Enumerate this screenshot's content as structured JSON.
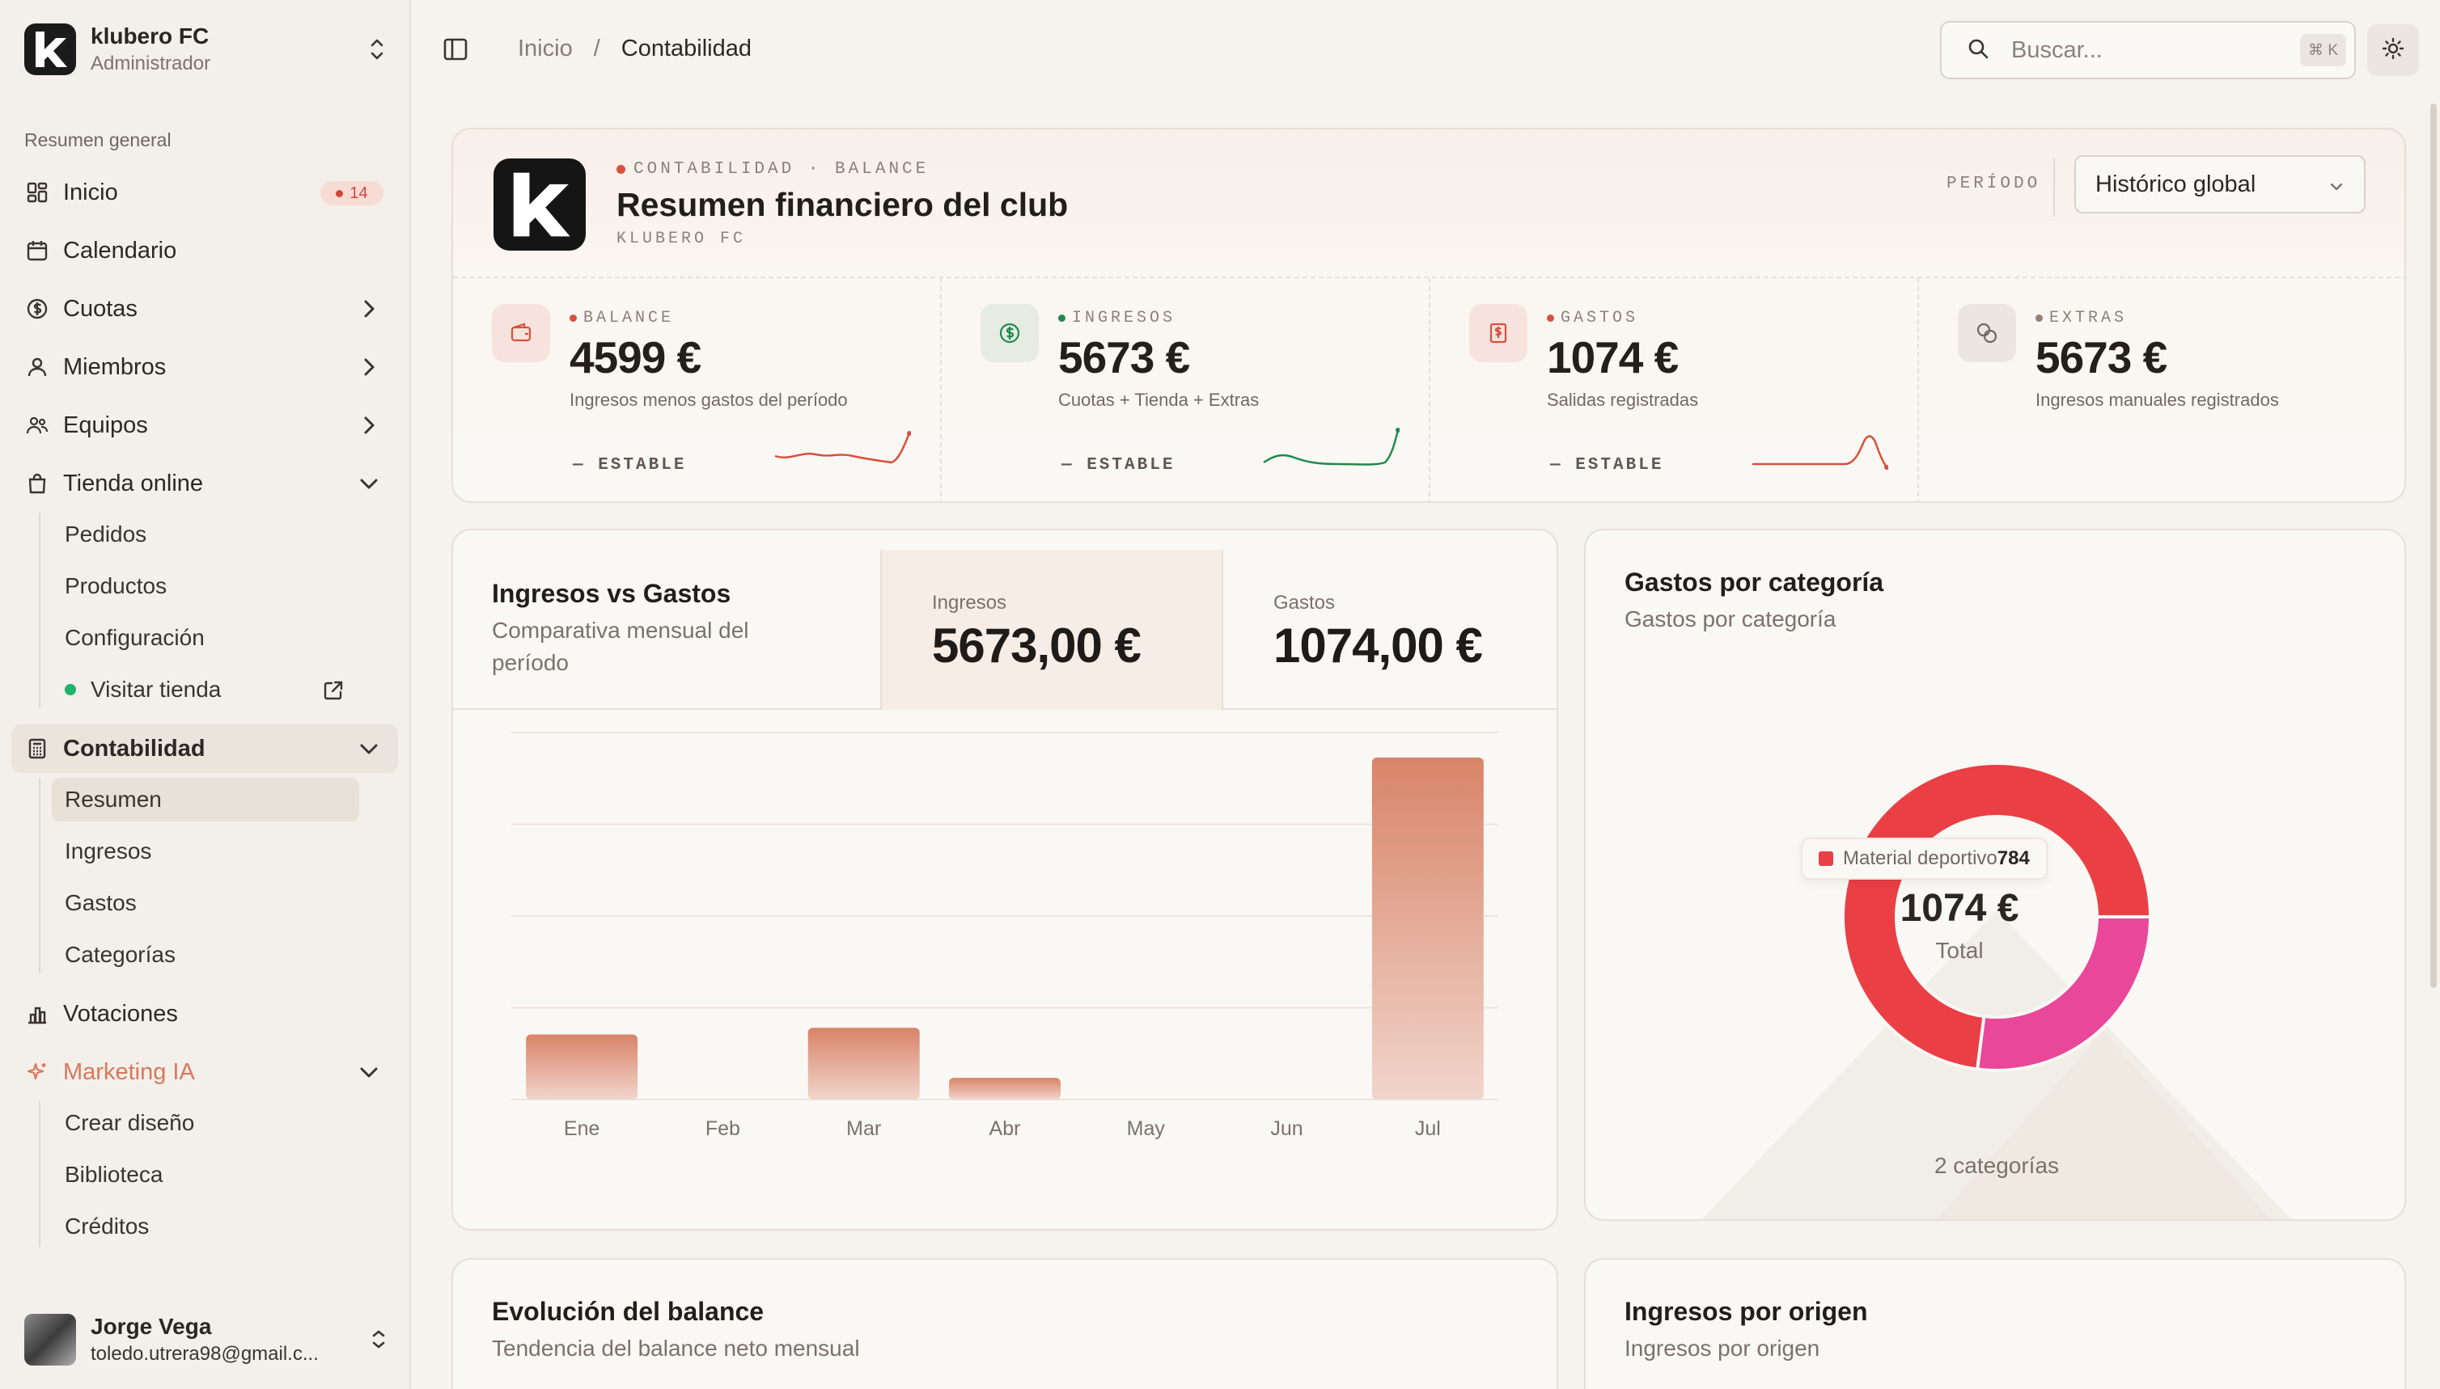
{
  "sidebar": {
    "club_name": "klubero FC",
    "club_role": "Administrador",
    "section_title": "Resumen general",
    "items": {
      "inicio": "Inicio",
      "inicio_badge": "14",
      "calendario": "Calendario",
      "cuotas": "Cuotas",
      "miembros": "Miembros",
      "equipos": "Equipos",
      "tienda": "Tienda online",
      "contabilidad": "Contabilidad",
      "votaciones": "Votaciones",
      "marketing": "Marketing IA"
    },
    "tienda_sub": [
      "Pedidos",
      "Productos",
      "Configuración",
      "Visitar tienda"
    ],
    "contabilidad_sub": [
      "Resumen",
      "Ingresos",
      "Gastos",
      "Categorías"
    ],
    "marketing_sub": [
      "Crear diseño",
      "Biblioteca",
      "Créditos"
    ],
    "user_name": "Jorge Vega",
    "user_email": "toledo.utrera98@gmail.c..."
  },
  "topbar": {
    "breadcrumb": [
      "Inicio",
      "/",
      "Contabilidad"
    ],
    "search_placeholder": "Buscar...",
    "search_shortcut": "⌘ K"
  },
  "header": {
    "eyebrow": "CONTABILIDAD · BALANCE",
    "title": "Resumen financiero del club",
    "subtitle": "KLUBERO FC",
    "period_label": "PERÍODO",
    "period_value": "Histórico global"
  },
  "kpis": [
    {
      "label": "BALANCE",
      "value": "4599 €",
      "desc": "Ingresos menos gastos del período",
      "trend": "— ESTABLE",
      "color": "#d9503c"
    },
    {
      "label": "INGRESOS",
      "value": "5673 €",
      "desc": "Cuotas + Tienda + Extras",
      "trend": "— ESTABLE",
      "color": "#1f8a4c"
    },
    {
      "label": "GASTOS",
      "value": "1074 €",
      "desc": "Salidas registradas",
      "trend": "— ESTABLE",
      "color": "#d9503c"
    },
    {
      "label": "EXTRAS",
      "value": "5673 €",
      "desc": "Ingresos manuales registrados",
      "trend": "",
      "color": "#8a827a"
    }
  ],
  "income_vs_expenses": {
    "title": "Ingresos vs Gastos",
    "description": "Comparativa mensual del período",
    "income_label": "Ingresos",
    "income_value": "5673,00 €",
    "expenses_label": "Gastos",
    "expenses_value": "1074,00 €"
  },
  "chart_data": [
    {
      "type": "bar",
      "categories": [
        "Ene",
        "Feb",
        "Mar",
        "Abr",
        "May",
        "Jun",
        "Jul"
      ],
      "values": [
        390,
        0,
        430,
        130,
        0,
        0,
        2050
      ],
      "ylim": [
        0,
        2200
      ],
      "grid": true,
      "color": "#d98a72"
    },
    {
      "type": "pie",
      "title": "Gastos por categoría",
      "subtitle": "Gastos por categoría",
      "slices": [
        {
          "name": "Material deportivo",
          "value": 784,
          "color": "#ea3f45"
        },
        {
          "name": "",
          "value": 290,
          "color": "#e8479a"
        }
      ],
      "center_value": "1074 €",
      "center_label": "Total",
      "tooltip": {
        "name": "Material deportivo",
        "value": "784"
      },
      "footer": "2 categorías"
    }
  ],
  "bottom": {
    "left_title": "Evolución del balance",
    "left_sub": "Tendencia del balance neto mensual",
    "right_title": "Ingresos por origen",
    "right_sub": "Ingresos por origen"
  }
}
